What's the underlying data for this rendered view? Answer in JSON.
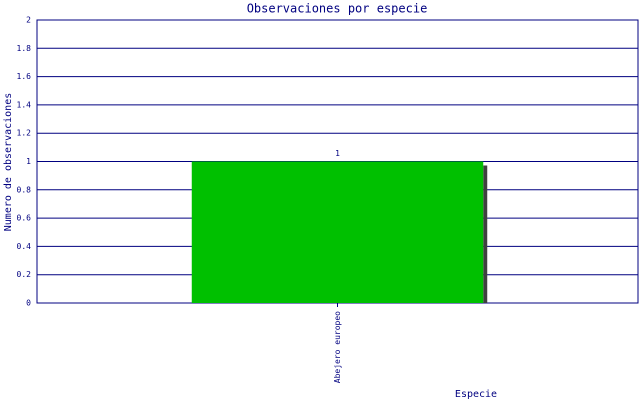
{
  "chart_data": {
    "type": "bar",
    "title": "Observaciones por especie",
    "x_label": "Especie",
    "y_label": "Numero de observaciones",
    "categories": [
      "Abejero europeo"
    ],
    "values": [
      1
    ],
    "color": "#00c000",
    "ylim": [
      0,
      2
    ],
    "yticks": [
      0,
      0.2,
      0.4,
      0.6,
      0.8,
      1,
      1.2,
      1.4,
      1.6,
      1.8,
      2
    ],
    "grid": true
  }
}
